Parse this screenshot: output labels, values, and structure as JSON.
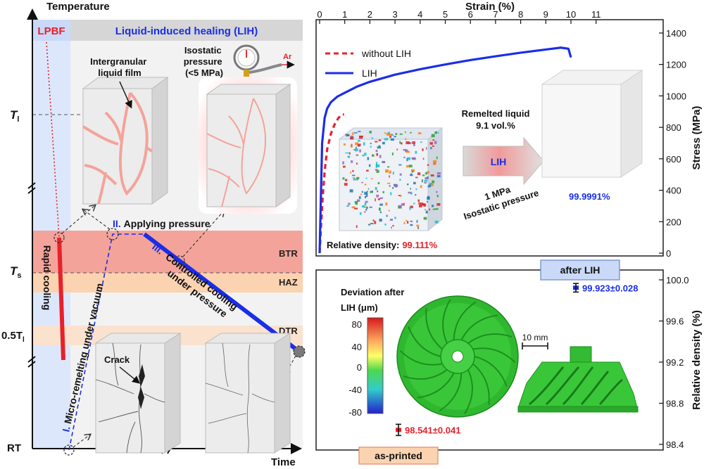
{
  "left_panel": {
    "y_axis_title": "Temperature",
    "x_axis_title": "Time",
    "header_lpbf": "LPBF",
    "header_lih": "Liquid-induced healing (LIH)",
    "tick_tl": "T",
    "tick_tl_sub": "l",
    "tick_ts": "T",
    "tick_ts_sub": "s",
    "tick_half_tl": "0.5T",
    "tick_half_tl_sub": "l",
    "tick_rt": "RT",
    "zone_btr": "BTR",
    "zone_haz": "HAZ",
    "zone_dtr": "DTR",
    "label_film": "Intergranular liquid film",
    "label_pressure": "Isostatic pressure (<5 MPa)",
    "label_ar": "Ar",
    "label_crack": "Crack",
    "label_rapid_cooling": "Rapid cooling",
    "step1_num": "I.",
    "step1_text": "Micro-remelting under vacuum",
    "step2_num": "II.",
    "step2_text": "Applying pressure",
    "step3_num": "III.",
    "step3_text": "Controlled cooling under pressure",
    "colors": {
      "lpbf": "#e8202a",
      "lih": "#1a2ee8",
      "btr": "#f4a39b",
      "haz": "#fbd3b0"
    }
  },
  "chart_data": [
    {
      "type": "line",
      "title": "",
      "xlabel": "Strain (%)",
      "ylabel": "Stress (MPa)",
      "xlim": [
        0,
        12
      ],
      "ylim": [
        0,
        1450
      ],
      "xticks": [
        0,
        1,
        2,
        3,
        4,
        5,
        6,
        7,
        8,
        9,
        10,
        11
      ],
      "yticks": [
        0,
        200,
        400,
        600,
        800,
        1000,
        1200,
        1400
      ],
      "legend_position": "top-left",
      "series": [
        {
          "name": "without LIH",
          "style": "dashed",
          "color": "#e8202a",
          "x": [
            0,
            0.05,
            0.12,
            0.2,
            0.3,
            0.45,
            0.6,
            0.75,
            0.85,
            0.93,
            0.97
          ],
          "y": [
            0,
            150,
            350,
            520,
            660,
            760,
            820,
            860,
            875,
            882,
            880
          ]
        },
        {
          "name": "LIH",
          "style": "solid",
          "color": "#1a2ee8",
          "x": [
            0,
            0.1,
            0.2,
            0.3,
            0.45,
            0.7,
            1.0,
            1.5,
            2.0,
            3.0,
            4.0,
            5.0,
            6.0,
            7.0,
            8.0,
            9.0,
            9.6,
            9.9,
            10.0
          ],
          "y": [
            0,
            700,
            860,
            920,
            960,
            995,
            1020,
            1060,
            1090,
            1135,
            1170,
            1200,
            1228,
            1252,
            1275,
            1295,
            1307,
            1300,
            1245
          ]
        }
      ],
      "annotations": {
        "density_label": "Relative density:",
        "density_before": "99.111%",
        "density_after": "99.9991%",
        "arrow_top1": "Remelted liquid",
        "arrow_top2": "9.1 vol.%",
        "arrow_mid": "LIH",
        "arrow_bottom1": "1 MPa",
        "arrow_bottom2": "Isostatic pressure"
      }
    },
    {
      "type": "bar",
      "ylabel": "Relative density (%)",
      "ylim": [
        98.4,
        100.0
      ],
      "yticks": [
        98.4,
        98.8,
        99.2,
        99.6,
        100.0
      ],
      "categories": [
        "as-printed",
        "after LIH"
      ],
      "values": [
        98.541,
        99.923
      ],
      "errors": [
        0.041,
        0.028
      ],
      "value_labels": [
        "98.541±0.041",
        "99.923±0.028"
      ],
      "colors": [
        "#e8202a",
        "#1a2ee8"
      ]
    }
  ],
  "bottom_panel": {
    "colorbar_title1": "Deviation after",
    "colorbar_title2": "LIH (μm)",
    "colorbar_ticks": [
      "80",
      "40",
      "0",
      "-40",
      "-80"
    ],
    "scale_bar": "10 mm"
  }
}
